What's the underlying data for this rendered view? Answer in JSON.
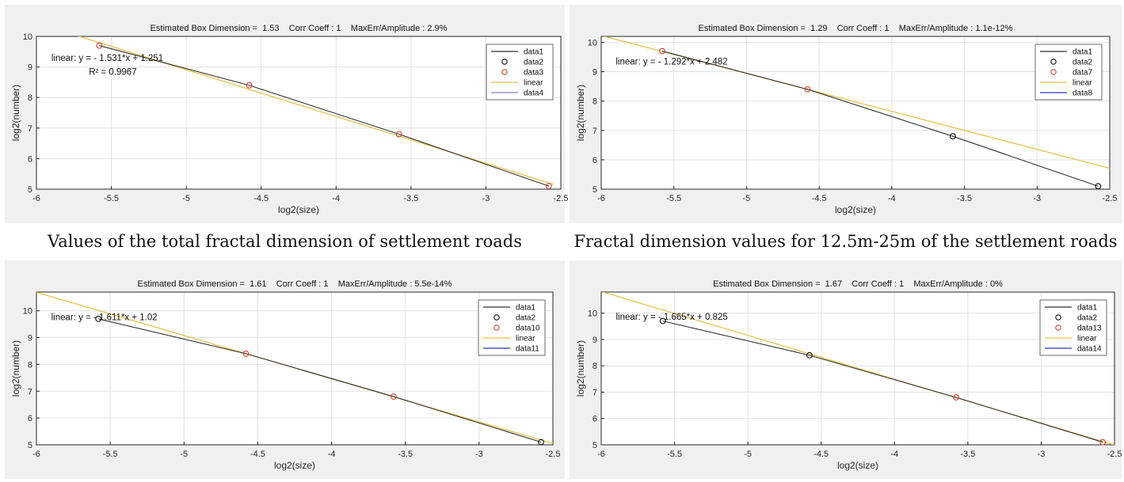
{
  "captions": {
    "top_left": "Values of the total fractal dimension of settlement roads",
    "top_right": "Fractal dimension values for 12.5m-25m of the settlement roads"
  },
  "colors": {
    "data_line": "#333333",
    "fit_line": "#e8c050",
    "black_marker": "#111111",
    "red_marker": "#d9412f",
    "legend_blue": "#3434c8",
    "legend_purple": "#8e7cc3"
  },
  "chart_data": [
    {
      "type": "line",
      "title": "Estimated Box Dimension =  1.53    Corr Coeff : 1    MaxErr/Amplitude : 2.9%",
      "xlabel": "log2(size)",
      "ylabel": "log2(number)",
      "xlim": [
        -6,
        -2.5
      ],
      "ylim": [
        5,
        10
      ],
      "xticks": [
        -6,
        -5.5,
        -5,
        -4.5,
        -4,
        -3.5,
        -3,
        -2.5
      ],
      "xtick_labels": [
        "-6",
        "-5.5",
        "-5",
        "-4.5",
        "-4",
        "-3.5",
        "-3",
        "-2.5"
      ],
      "yticks": [
        5,
        6,
        7,
        8,
        9,
        10
      ],
      "ytick_labels": [
        "5",
        "6",
        "7",
        "8",
        "9",
        "10"
      ],
      "grid": true,
      "legend_position": "top-right",
      "legend": [
        {
          "label": "data1",
          "kind": "line",
          "color": "#333333"
        },
        {
          "label": "data2",
          "kind": "marker",
          "color": "#111111"
        },
        {
          "label": "data3",
          "kind": "marker",
          "color": "#d9412f"
        },
        {
          "label": "linear",
          "kind": "line",
          "color": "#e8c050"
        },
        {
          "label": "data4",
          "kind": "line",
          "color": "#8e7cc3"
        }
      ],
      "annotations": [
        {
          "text": "linear: y = - 1.531*x + 1.251",
          "x": -5.9,
          "y": 9.2
        },
        {
          "text": "R² = 0.9967",
          "x": -5.65,
          "y": 8.75
        }
      ],
      "series": [
        {
          "x": [
            -5.58,
            -4.58,
            -3.58,
            -2.58
          ],
          "y": [
            9.7,
            8.4,
            6.8,
            5.1
          ]
        },
        {
          "x": [
            -5.58,
            -4.58,
            -3.58,
            -2.58
          ],
          "y": [
            9.7,
            8.4,
            6.8,
            5.1
          ],
          "marker": true,
          "color": "#d9412f"
        },
        {
          "x": [
            -5.85,
            -2.55
          ],
          "y": [
            10.21,
            5.16
          ]
        }
      ]
    },
    {
      "type": "line",
      "title": "Estimated Box Dimension =  1.29    Corr Coeff : 1    MaxErr/Amplitude : 1.1e-12%",
      "xlabel": "log2(size)",
      "ylabel": "log2(number)",
      "xlim": [
        -6,
        -2.5
      ],
      "ylim": [
        5,
        10.2
      ],
      "xticks": [
        -6,
        -5.5,
        -5,
        -4.5,
        -4,
        -3.5,
        -3,
        -2.5
      ],
      "xtick_labels": [
        "-6",
        "-5.5",
        "-5",
        "-4.5",
        "-4",
        "-3.5",
        "-3",
        "-2.5"
      ],
      "yticks": [
        5,
        6,
        7,
        8,
        9,
        10
      ],
      "ytick_labels": [
        "5",
        "6",
        "7",
        "8",
        "9",
        "10"
      ],
      "grid": true,
      "legend_position": "top-right",
      "legend": [
        {
          "label": "data1",
          "kind": "line",
          "color": "#333333"
        },
        {
          "label": "data2",
          "kind": "marker",
          "color": "#111111"
        },
        {
          "label": "data7",
          "kind": "marker",
          "color": "#d9412f"
        },
        {
          "label": "linear",
          "kind": "line",
          "color": "#e8c050"
        },
        {
          "label": "data8",
          "kind": "line",
          "color": "#3434c8"
        }
      ],
      "annotations": [
        {
          "text": "linear: y = - 1.292*x + 2.482",
          "x": -5.9,
          "y": 9.25
        }
      ],
      "series": [
        {
          "x": [
            -5.58,
            -4.58,
            -3.58,
            -2.58
          ],
          "y": [
            9.7,
            8.4,
            6.8,
            5.1
          ]
        },
        {
          "x": [
            -3.58,
            -2.58
          ],
          "y": [
            6.8,
            5.1
          ],
          "marker": true,
          "color": "#111111"
        },
        {
          "x": [
            -5.58,
            -4.58
          ],
          "y": [
            9.7,
            8.4
          ],
          "marker": true,
          "color": "#d9412f"
        },
        {
          "x": [
            -6,
            -2.5
          ],
          "y": [
            10.23,
            5.71
          ]
        }
      ]
    },
    {
      "type": "line",
      "title": "Estimated Box Dimension =  1.61    Corr Coeff : 1    MaxErr/Amplitude : 5.5e-14%",
      "xlabel": "log2(size)",
      "ylabel": "log2(number)",
      "xlim": [
        -6,
        -2.5
      ],
      "ylim": [
        5,
        10.7
      ],
      "xticks": [
        -6,
        -5.5,
        -5,
        -4.5,
        -4,
        -3.5,
        -3,
        -2.5
      ],
      "xtick_labels": [
        "-6",
        "-5.5",
        "-5",
        "-4.5",
        "-4",
        "-3.5",
        "-3",
        "-2.5"
      ],
      "yticks": [
        5,
        6,
        7,
        8,
        9,
        10
      ],
      "ytick_labels": [
        "5",
        "6",
        "7",
        "8",
        "9",
        "10"
      ],
      "grid": true,
      "legend_position": "top-right",
      "legend": [
        {
          "label": "data1",
          "kind": "line",
          "color": "#333333"
        },
        {
          "label": "data2",
          "kind": "marker",
          "color": "#111111"
        },
        {
          "label": "data10",
          "kind": "marker",
          "color": "#d9412f"
        },
        {
          "label": "linear",
          "kind": "line",
          "color": "#e8c050"
        },
        {
          "label": "data11",
          "kind": "line",
          "color": "#3434c8"
        }
      ],
      "annotations": [
        {
          "text": "linear: y = - 1.611*x + 1.02",
          "x": -5.9,
          "y": 9.65
        }
      ],
      "series": [
        {
          "x": [
            -5.58,
            -4.58,
            -3.58,
            -2.58
          ],
          "y": [
            9.7,
            8.4,
            6.8,
            5.1
          ]
        },
        {
          "x": [
            -5.58,
            -2.58
          ],
          "y": [
            9.7,
            5.1
          ],
          "marker": true,
          "color": "#111111"
        },
        {
          "x": [
            -4.58,
            -3.58
          ],
          "y": [
            8.4,
            6.8
          ],
          "marker": true,
          "color": "#d9412f"
        },
        {
          "x": [
            -6,
            -2.5
          ],
          "y": [
            10.69,
            5.05
          ]
        }
      ]
    },
    {
      "type": "line",
      "title": "Estimated Box Dimension =  1.67    Corr Coeff : 1    MaxErr/Amplitude : 0%",
      "xlabel": "log2(size)",
      "ylabel": "log2(number)",
      "xlim": [
        -6,
        -2.5
      ],
      "ylim": [
        5,
        10.8
      ],
      "xticks": [
        -6,
        -5.5,
        -5,
        -4.5,
        -4,
        -3.5,
        -3,
        -2.5
      ],
      "xtick_labels": [
        "-6",
        "-5.5",
        "-5",
        "-4.5",
        "-4",
        "-3.5",
        "-3",
        "-2.5"
      ],
      "yticks": [
        5,
        6,
        7,
        8,
        9,
        10
      ],
      "ytick_labels": [
        "5",
        "6",
        "7",
        "8",
        "9",
        "10"
      ],
      "grid": true,
      "legend_position": "top-right",
      "legend": [
        {
          "label": "data1",
          "kind": "line",
          "color": "#333333"
        },
        {
          "label": "data2",
          "kind": "marker",
          "color": "#111111"
        },
        {
          "label": "data13",
          "kind": "marker",
          "color": "#d9412f"
        },
        {
          "label": "linear",
          "kind": "line",
          "color": "#e8c050"
        },
        {
          "label": "data14",
          "kind": "line",
          "color": "#3434c8"
        }
      ],
      "annotations": [
        {
          "text": "linear: y = - 1.665*x + 0.825",
          "x": -5.9,
          "y": 9.75
        }
      ],
      "series": [
        {
          "x": [
            -5.58,
            -4.58,
            -3.58,
            -2.58
          ],
          "y": [
            9.7,
            8.4,
            6.8,
            5.1
          ]
        },
        {
          "x": [
            -5.58,
            -4.58
          ],
          "y": [
            9.7,
            8.4
          ],
          "marker": true,
          "color": "#111111"
        },
        {
          "x": [
            -3.58,
            -2.58
          ],
          "y": [
            6.8,
            5.1
          ],
          "marker": true,
          "color": "#d9412f"
        },
        {
          "x": [
            -6,
            -2.5
          ],
          "y": [
            10.82,
            4.99
          ]
        }
      ]
    }
  ]
}
